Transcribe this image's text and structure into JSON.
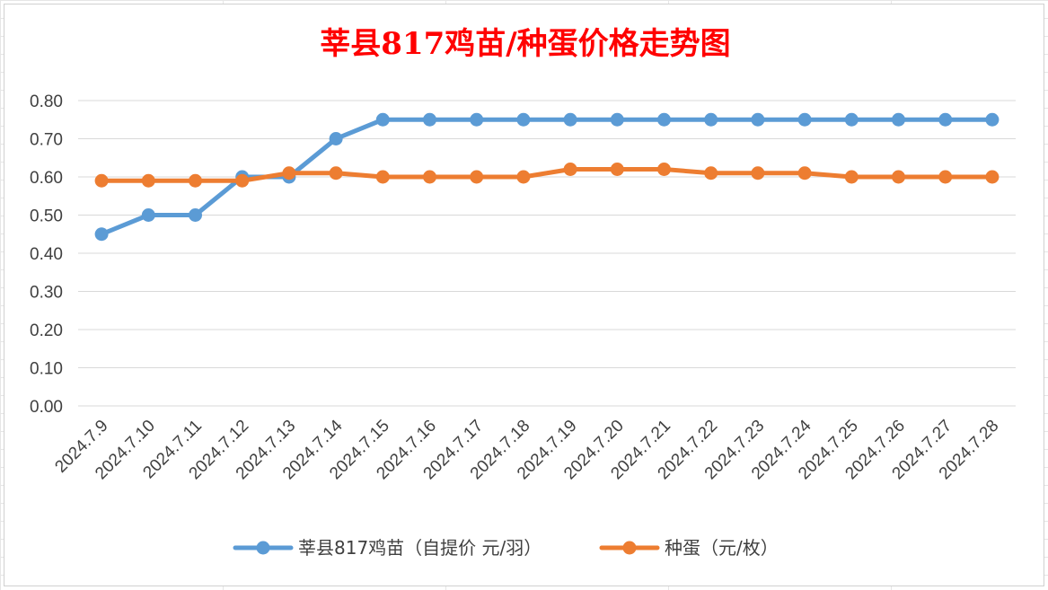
{
  "chart_data": {
    "type": "line",
    "title": "莘县817鸡苗/种蛋价格走势图",
    "categories": [
      "2024.7.9",
      "2024.7.10",
      "2024.7.11",
      "2024.7.12",
      "2024.7.13",
      "2024.7.14",
      "2024.7.15",
      "2024.7.16",
      "2024.7.17",
      "2024.7.18",
      "2024.7.19",
      "2024.7.20",
      "2024.7.21",
      "2024.7.22",
      "2024.7.23",
      "2024.7.24",
      "2024.7.25",
      "2024.7.26",
      "2024.7.27",
      "2024.7.28"
    ],
    "series": [
      {
        "name": "莘县817鸡苗（自提价 元/羽）",
        "color": "#5b9bd5",
        "values": [
          0.45,
          0.5,
          0.5,
          0.6,
          0.6,
          0.7,
          0.75,
          0.75,
          0.75,
          0.75,
          0.75,
          0.75,
          0.75,
          0.75,
          0.75,
          0.75,
          0.75,
          0.75,
          0.75,
          0.75
        ]
      },
      {
        "name": "种蛋（元/枚）",
        "color": "#ed7d31",
        "values": [
          0.59,
          0.59,
          0.59,
          0.59,
          0.61,
          0.61,
          0.6,
          0.6,
          0.6,
          0.6,
          0.62,
          0.62,
          0.62,
          0.61,
          0.61,
          0.61,
          0.6,
          0.6,
          0.6,
          0.6
        ]
      }
    ],
    "y_ticks": [
      "0.00",
      "0.10",
      "0.20",
      "0.30",
      "0.40",
      "0.50",
      "0.60",
      "0.70",
      "0.80"
    ],
    "ylim": [
      0,
      0.8
    ],
    "xlabel": "",
    "ylabel": "",
    "grid": true,
    "legend_position": "bottom"
  }
}
